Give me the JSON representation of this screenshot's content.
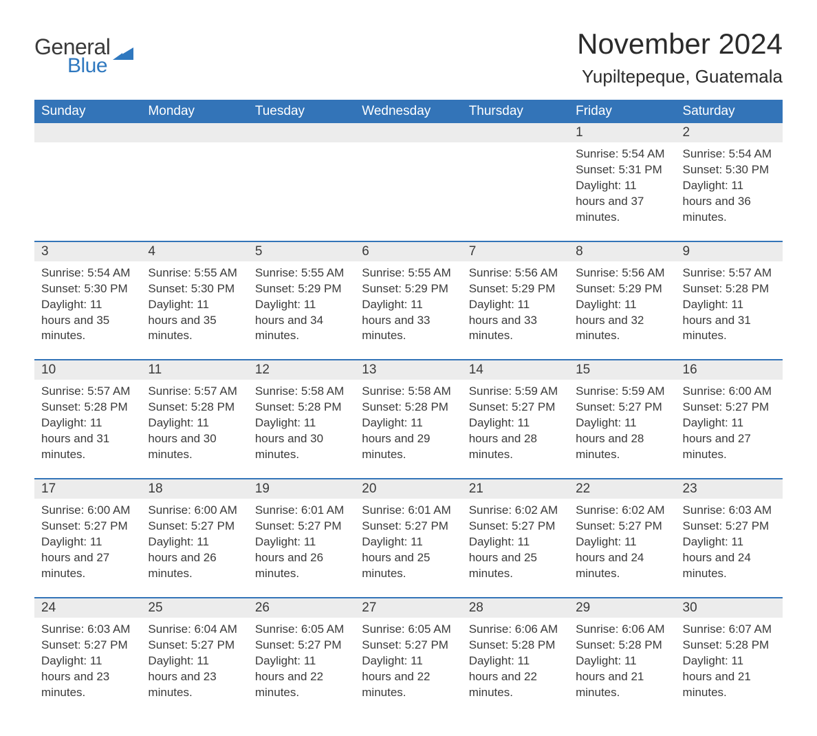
{
  "logo": {
    "word1": "General",
    "word2": "Blue",
    "accent_color": "#2f78bf"
  },
  "title": "November 2024",
  "location": "Yupiltepeque, Guatemala",
  "colors": {
    "header_bg": "#3374b8",
    "header_text": "#ffffff",
    "band_bg": "#ececec",
    "text": "#3a3a3a",
    "rule": "#3374b8",
    "page_bg": "#ffffff"
  },
  "day_names": [
    "Sunday",
    "Monday",
    "Tuesday",
    "Wednesday",
    "Thursday",
    "Friday",
    "Saturday"
  ],
  "weeks": [
    [
      null,
      null,
      null,
      null,
      null,
      {
        "n": "1",
        "sunrise": "5:54 AM",
        "sunset": "5:31 PM",
        "daylight": "11 hours and 37 minutes."
      },
      {
        "n": "2",
        "sunrise": "5:54 AM",
        "sunset": "5:30 PM",
        "daylight": "11 hours and 36 minutes."
      }
    ],
    [
      {
        "n": "3",
        "sunrise": "5:54 AM",
        "sunset": "5:30 PM",
        "daylight": "11 hours and 35 minutes."
      },
      {
        "n": "4",
        "sunrise": "5:55 AM",
        "sunset": "5:30 PM",
        "daylight": "11 hours and 35 minutes."
      },
      {
        "n": "5",
        "sunrise": "5:55 AM",
        "sunset": "5:29 PM",
        "daylight": "11 hours and 34 minutes."
      },
      {
        "n": "6",
        "sunrise": "5:55 AM",
        "sunset": "5:29 PM",
        "daylight": "11 hours and 33 minutes."
      },
      {
        "n": "7",
        "sunrise": "5:56 AM",
        "sunset": "5:29 PM",
        "daylight": "11 hours and 33 minutes."
      },
      {
        "n": "8",
        "sunrise": "5:56 AM",
        "sunset": "5:29 PM",
        "daylight": "11 hours and 32 minutes."
      },
      {
        "n": "9",
        "sunrise": "5:57 AM",
        "sunset": "5:28 PM",
        "daylight": "11 hours and 31 minutes."
      }
    ],
    [
      {
        "n": "10",
        "sunrise": "5:57 AM",
        "sunset": "5:28 PM",
        "daylight": "11 hours and 31 minutes."
      },
      {
        "n": "11",
        "sunrise": "5:57 AM",
        "sunset": "5:28 PM",
        "daylight": "11 hours and 30 minutes."
      },
      {
        "n": "12",
        "sunrise": "5:58 AM",
        "sunset": "5:28 PM",
        "daylight": "11 hours and 30 minutes."
      },
      {
        "n": "13",
        "sunrise": "5:58 AM",
        "sunset": "5:28 PM",
        "daylight": "11 hours and 29 minutes."
      },
      {
        "n": "14",
        "sunrise": "5:59 AM",
        "sunset": "5:27 PM",
        "daylight": "11 hours and 28 minutes."
      },
      {
        "n": "15",
        "sunrise": "5:59 AM",
        "sunset": "5:27 PM",
        "daylight": "11 hours and 28 minutes."
      },
      {
        "n": "16",
        "sunrise": "6:00 AM",
        "sunset": "5:27 PM",
        "daylight": "11 hours and 27 minutes."
      }
    ],
    [
      {
        "n": "17",
        "sunrise": "6:00 AM",
        "sunset": "5:27 PM",
        "daylight": "11 hours and 27 minutes."
      },
      {
        "n": "18",
        "sunrise": "6:00 AM",
        "sunset": "5:27 PM",
        "daylight": "11 hours and 26 minutes."
      },
      {
        "n": "19",
        "sunrise": "6:01 AM",
        "sunset": "5:27 PM",
        "daylight": "11 hours and 26 minutes."
      },
      {
        "n": "20",
        "sunrise": "6:01 AM",
        "sunset": "5:27 PM",
        "daylight": "11 hours and 25 minutes."
      },
      {
        "n": "21",
        "sunrise": "6:02 AM",
        "sunset": "5:27 PM",
        "daylight": "11 hours and 25 minutes."
      },
      {
        "n": "22",
        "sunrise": "6:02 AM",
        "sunset": "5:27 PM",
        "daylight": "11 hours and 24 minutes."
      },
      {
        "n": "23",
        "sunrise": "6:03 AM",
        "sunset": "5:27 PM",
        "daylight": "11 hours and 24 minutes."
      }
    ],
    [
      {
        "n": "24",
        "sunrise": "6:03 AM",
        "sunset": "5:27 PM",
        "daylight": "11 hours and 23 minutes."
      },
      {
        "n": "25",
        "sunrise": "6:04 AM",
        "sunset": "5:27 PM",
        "daylight": "11 hours and 23 minutes."
      },
      {
        "n": "26",
        "sunrise": "6:05 AM",
        "sunset": "5:27 PM",
        "daylight": "11 hours and 22 minutes."
      },
      {
        "n": "27",
        "sunrise": "6:05 AM",
        "sunset": "5:27 PM",
        "daylight": "11 hours and 22 minutes."
      },
      {
        "n": "28",
        "sunrise": "6:06 AM",
        "sunset": "5:28 PM",
        "daylight": "11 hours and 22 minutes."
      },
      {
        "n": "29",
        "sunrise": "6:06 AM",
        "sunset": "5:28 PM",
        "daylight": "11 hours and 21 minutes."
      },
      {
        "n": "30",
        "sunrise": "6:07 AM",
        "sunset": "5:28 PM",
        "daylight": "11 hours and 21 minutes."
      }
    ]
  ],
  "labels": {
    "sunrise": "Sunrise: ",
    "sunset": "Sunset: ",
    "daylight": "Daylight: "
  }
}
